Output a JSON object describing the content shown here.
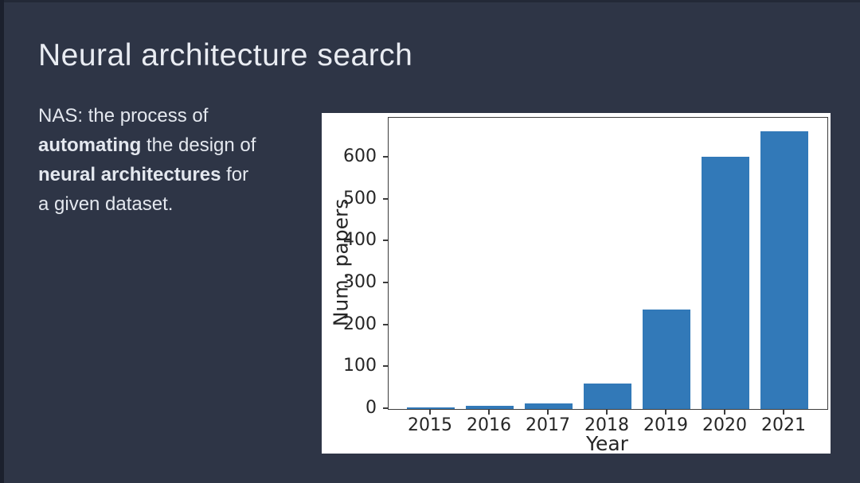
{
  "slide": {
    "title": "Neural architecture search",
    "paragraph_lines": [
      [
        {
          "text": "NAS: the process of",
          "bold": false
        }
      ],
      [
        {
          "text": "automating",
          "bold": true
        },
        {
          "text": " the design of",
          "bold": false
        }
      ],
      [
        {
          "text": "neural architectures",
          "bold": true
        },
        {
          "text": " for",
          "bold": false
        }
      ],
      [
        {
          "text": "a given dataset.",
          "bold": false
        }
      ]
    ]
  },
  "colors": {
    "slide_background": "#2e3546",
    "left_edge_strip": "#1b202d",
    "title_text": "#e9ecf2",
    "body_text": "#e4e8ef",
    "chart_background": "#ffffff",
    "axis_line": "#3c3c3c",
    "chart_text": "#262626",
    "bar_fill": "#3279b8"
  },
  "chart_data": {
    "type": "bar",
    "title": "",
    "xlabel": "Year",
    "ylabel": "Num. papers",
    "categories": [
      "2015",
      "2016",
      "2017",
      "2018",
      "2019",
      "2020",
      "2021"
    ],
    "values": [
      3,
      7,
      13,
      60,
      237,
      602,
      662
    ],
    "ylim": [
      0,
      695
    ],
    "yticks": [
      0,
      100,
      200,
      300,
      400,
      500,
      600
    ],
    "grid": false,
    "legend": null
  }
}
